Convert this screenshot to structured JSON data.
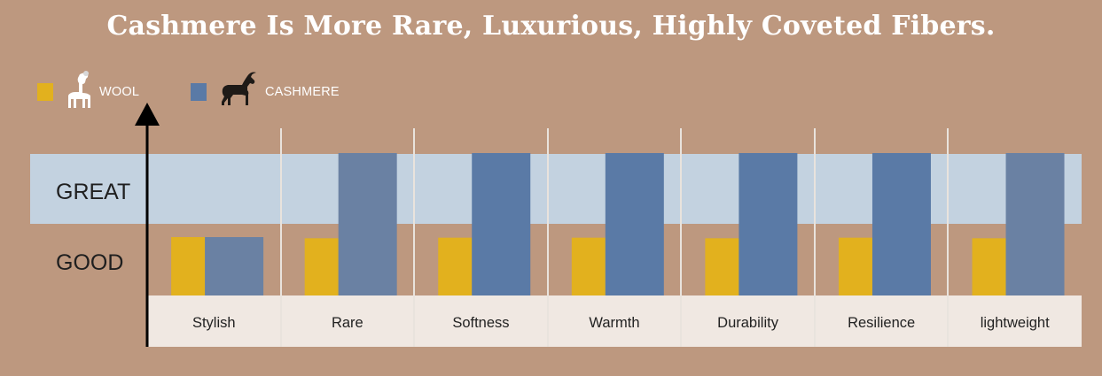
{
  "title": "Cashmere Is More Rare, Luxurious, Highly Coveted Fibers.",
  "legend": [
    {
      "label": "WOOL",
      "color": "#e2b11e",
      "icon": "sheep-icon"
    },
    {
      "label": "CASHMERE",
      "color": "#5a7aa6",
      "icon": "goat-icon"
    }
  ],
  "chart_data": {
    "type": "bar",
    "categories": [
      "Stylish",
      "Rare",
      "Softness",
      "Warmth",
      "Durability",
      "Resilience",
      "lightweight"
    ],
    "levels": [
      "GOOD",
      "GREAT"
    ],
    "series": [
      {
        "name": "WOOL",
        "color": "#e2b11e",
        "values": [
          1.0,
          0.98,
          0.99,
          0.99,
          0.98,
          0.99,
          0.98
        ]
      },
      {
        "name": "CASHMERE",
        "color": "#5a7aa6",
        "values": [
          1.0,
          2.0,
          2.0,
          2.0,
          2.0,
          2.0,
          2.0
        ]
      }
    ],
    "ylim": [
      0,
      2
    ],
    "grid": false,
    "legend_position": "top-left"
  }
}
